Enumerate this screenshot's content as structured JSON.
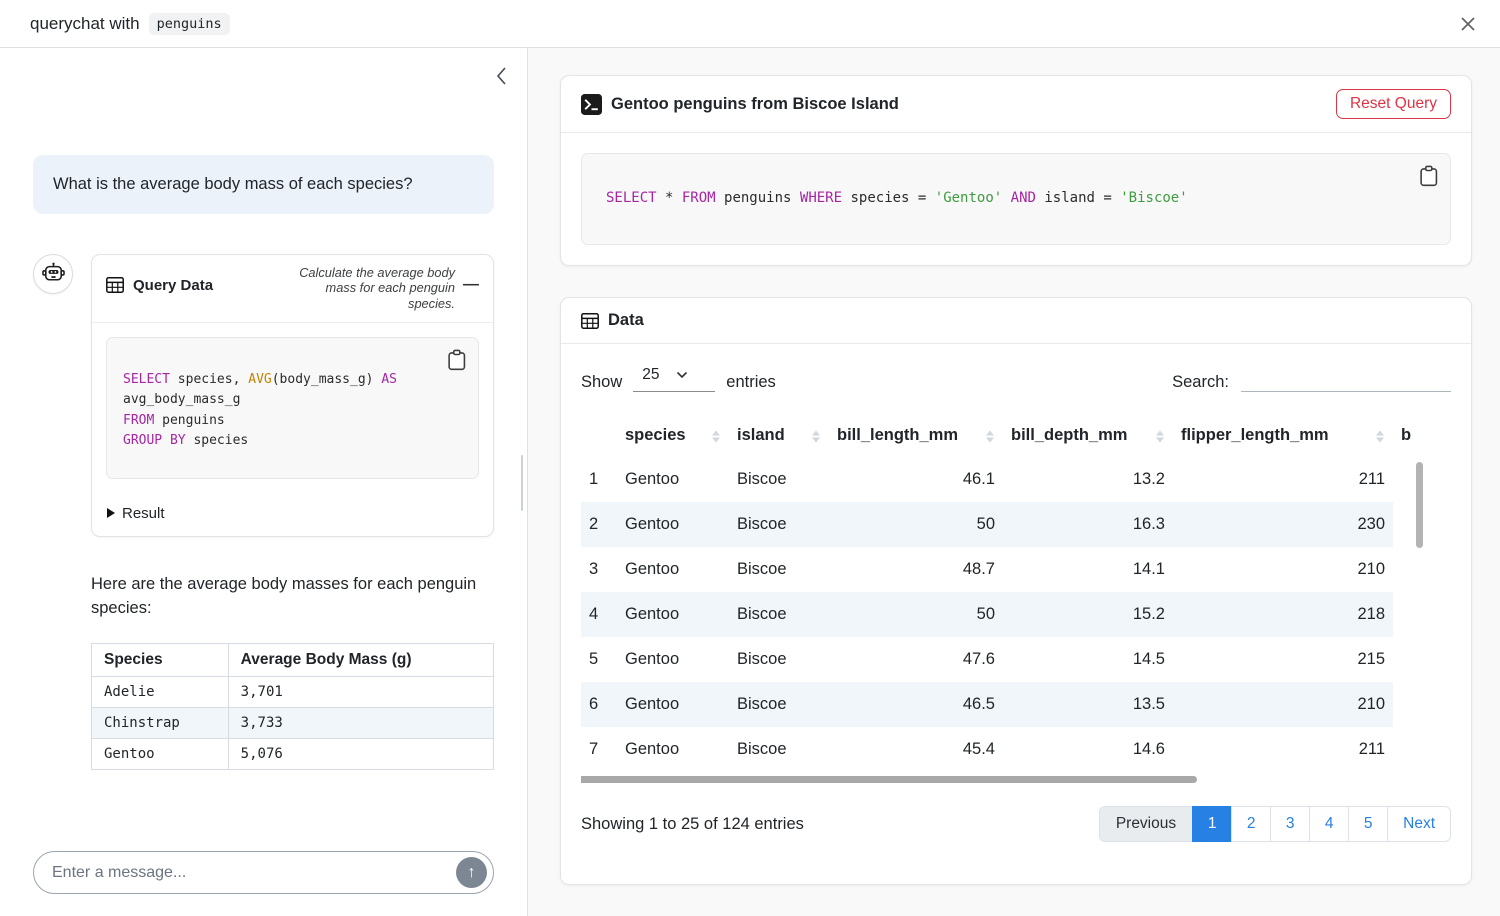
{
  "header": {
    "title_prefix": "querychat with",
    "dataset_badge": "penguins"
  },
  "sidebar": {
    "user_message": "What is the average body mass of each species?",
    "tool_card": {
      "title": "Query Data",
      "subtitle": "Calculate the average body mass for each penguin species.",
      "result_label": "Result",
      "sql_lines": [
        [
          {
            "t": "SELECT",
            "c": "kw"
          },
          {
            "t": " species, ",
            "c": "pl"
          },
          {
            "t": "AVG",
            "c": "fn"
          },
          {
            "t": "(body_mass_g) ",
            "c": "pl"
          },
          {
            "t": "AS",
            "c": "kw"
          }
        ],
        [
          {
            "t": "avg_body_mass_g",
            "c": "pl"
          }
        ],
        [
          {
            "t": "FROM",
            "c": "kw"
          },
          {
            "t": " penguins",
            "c": "pl"
          }
        ],
        [
          {
            "t": "GROUP BY",
            "c": "kw"
          },
          {
            "t": " species",
            "c": "pl"
          }
        ]
      ]
    },
    "answer_text": "Here are the average body masses for each penguin species:",
    "result_table": {
      "headers": [
        "Species",
        "Average Body Mass (g)"
      ],
      "rows": [
        [
          "Adelie",
          "3,701"
        ],
        [
          "Chinstrap",
          "3,733"
        ],
        [
          "Gentoo",
          "5,076"
        ]
      ]
    },
    "input_placeholder": "Enter a message..."
  },
  "main": {
    "query_card": {
      "title": "Gentoo penguins from Biscoe Island",
      "reset_label": "Reset Query",
      "sql_lines": [
        [
          {
            "t": "SELECT",
            "c": "kw"
          },
          {
            "t": " * ",
            "c": "pl"
          },
          {
            "t": "FROM",
            "c": "kw"
          },
          {
            "t": " penguins ",
            "c": "pl"
          },
          {
            "t": "WHERE",
            "c": "kw"
          },
          {
            "t": " species = ",
            "c": "pl"
          },
          {
            "t": "'Gentoo'",
            "c": "str"
          },
          {
            "t": " ",
            "c": "pl"
          },
          {
            "t": "AND",
            "c": "kw"
          },
          {
            "t": " island = ",
            "c": "pl"
          },
          {
            "t": "'Biscoe'",
            "c": "str"
          }
        ]
      ]
    },
    "data_card": {
      "title": "Data",
      "show_label": "Show",
      "page_size": "25",
      "entries_label": "entries",
      "search_label": "Search:",
      "table": {
        "columns": [
          "",
          "species",
          "island",
          "bill_length_mm",
          "bill_depth_mm",
          "flipper_length_mm",
          "b"
        ],
        "rows": [
          [
            "1",
            "Gentoo",
            "Biscoe",
            "46.1",
            "13.2",
            "211"
          ],
          [
            "2",
            "Gentoo",
            "Biscoe",
            "50",
            "16.3",
            "230"
          ],
          [
            "3",
            "Gentoo",
            "Biscoe",
            "48.7",
            "14.1",
            "210"
          ],
          [
            "4",
            "Gentoo",
            "Biscoe",
            "50",
            "15.2",
            "218"
          ],
          [
            "5",
            "Gentoo",
            "Biscoe",
            "47.6",
            "14.5",
            "215"
          ],
          [
            "6",
            "Gentoo",
            "Biscoe",
            "46.5",
            "13.5",
            "210"
          ],
          [
            "7",
            "Gentoo",
            "Biscoe",
            "45.4",
            "14.6",
            "211"
          ]
        ]
      },
      "footer": {
        "summary": "Showing 1 to 25 of 124 entries",
        "prev_label": "Previous",
        "pages": [
          "1",
          "2",
          "3",
          "4",
          "5"
        ],
        "active_page": "1",
        "next_label": "Next"
      }
    }
  },
  "colors": {
    "accent": "#2780e3",
    "danger": "#dc3545",
    "sql_keyword": "#a626a4",
    "sql_function": "#c18401",
    "sql_string": "#3f9b42",
    "row_stripe": "#f0f6fa"
  }
}
